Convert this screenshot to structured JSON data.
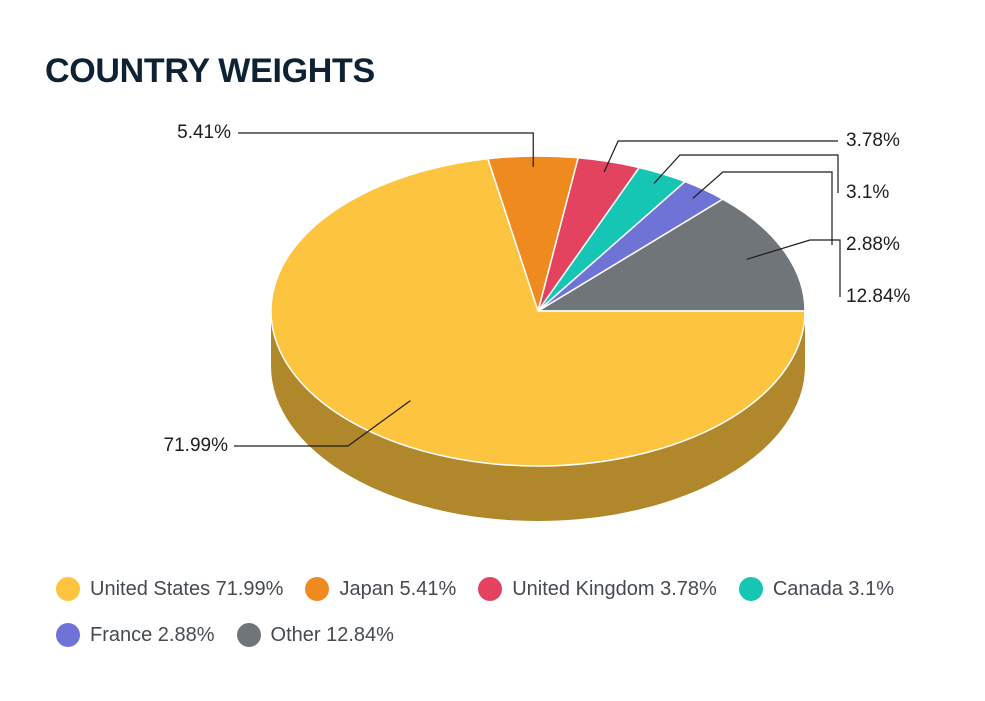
{
  "title": "COUNTRY WEIGHTS",
  "chart_data": {
    "type": "pie",
    "title": "COUNTRY WEIGHTS",
    "style": "3d",
    "legend_position": "bottom",
    "slices": [
      {
        "name": "United States",
        "value": 71.99,
        "label": "71.99%",
        "legend": "United States 71.99%",
        "color": "#FDC43F",
        "side_color": "#B0882B"
      },
      {
        "name": "Japan",
        "value": 5.41,
        "label": "5.41%",
        "legend": "Japan 5.41%",
        "color": "#EE8A1E",
        "side_color": "#A6610F"
      },
      {
        "name": "United Kingdom",
        "value": 3.78,
        "label": "3.78%",
        "legend": "United Kingdom 3.78%",
        "color": "#E3435F",
        "side_color": "#9E2E42"
      },
      {
        "name": "Canada",
        "value": 3.1,
        "label": "3.1%",
        "legend": "Canada 3.1%",
        "color": "#16C6B4",
        "side_color": "#0F8A7E"
      },
      {
        "name": "France",
        "value": 2.88,
        "label": "2.88%",
        "legend": "France 2.88%",
        "color": "#6F73D6",
        "side_color": "#4E5196"
      },
      {
        "name": "Other",
        "value": 12.84,
        "label": "12.84%",
        "legend": "Other 12.84%",
        "color": "#707579",
        "side_color": "#4F5255"
      }
    ]
  }
}
